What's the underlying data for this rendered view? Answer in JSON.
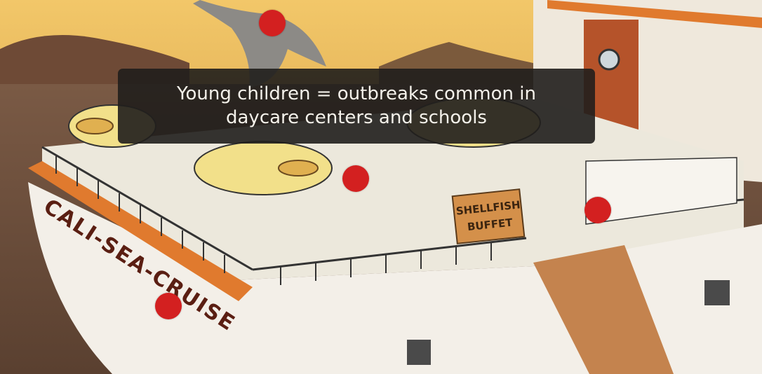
{
  "scene": {
    "ship_name": "CALI-SEA-CRUISE",
    "sign_line1": "SHELLFISH",
    "sign_line2": "BUFFET"
  },
  "tooltip": {
    "text": "Young children = outbreaks common in daycare centers and schools"
  },
  "hotspots": [
    {
      "name": "hotspot-whale"
    },
    {
      "name": "hotspot-child-at-table"
    },
    {
      "name": "hotspot-buffet"
    },
    {
      "name": "hotspot-ship-hull"
    }
  ],
  "colors": {
    "hotspot": "#d32020",
    "sky": "#e8b75a",
    "deck": "#ece8dc",
    "hull_stripe": "#e07a2e"
  }
}
